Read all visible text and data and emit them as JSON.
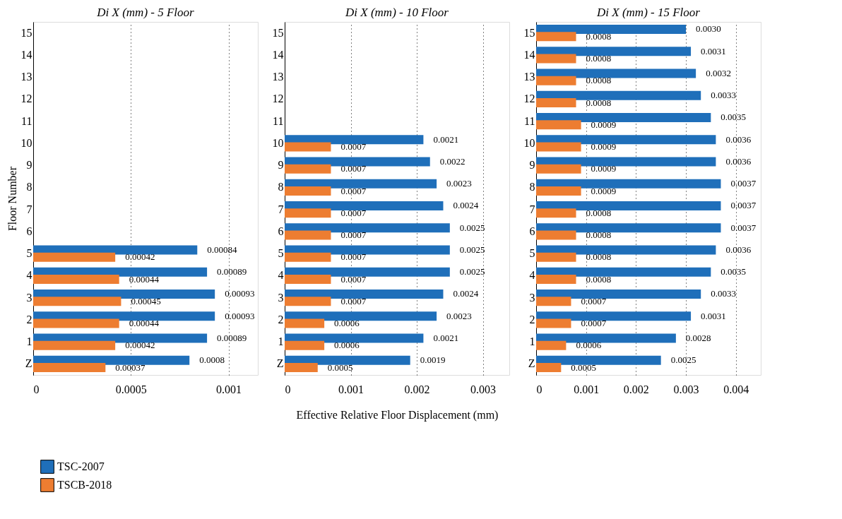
{
  "chart_data": [
    {
      "type": "bar",
      "orientation": "horizontal",
      "title": "Di X (mm) - 5 Floor",
      "ylabel": "Floor Number",
      "legend": "bottom left",
      "grid": "x",
      "categories": [
        "15",
        "14",
        "13",
        "12",
        "11",
        "10",
        "9",
        "8",
        "7",
        "6",
        "5",
        "4",
        "3",
        "2",
        "1",
        "Z"
      ],
      "xlim": [
        0,
        0.00115
      ],
      "xticks": [
        0,
        0.0005,
        0.001
      ],
      "series": [
        {
          "name": "TSC-2007",
          "color": "#1f6fba",
          "values": [
            null,
            null,
            null,
            null,
            null,
            null,
            null,
            null,
            null,
            null,
            0.00084,
            0.00089,
            0.00093,
            0.00093,
            0.00089,
            0.0008
          ],
          "value_labels": [
            null,
            null,
            null,
            null,
            null,
            null,
            null,
            null,
            null,
            null,
            "0.00084",
            "0.00089",
            "0.00093",
            "0.00093",
            "0.00089",
            "0.0008"
          ]
        },
        {
          "name": "TSCB-2018",
          "color": "#ed7d31",
          "values": [
            null,
            null,
            null,
            null,
            null,
            null,
            null,
            null,
            null,
            null,
            0.00042,
            0.00044,
            0.00045,
            0.00044,
            0.00042,
            0.00037
          ],
          "value_labels": [
            null,
            null,
            null,
            null,
            null,
            null,
            null,
            null,
            null,
            null,
            "0.00042",
            "0.00044",
            "0.00045",
            "0.00044",
            "0.00042",
            "0.00037"
          ]
        }
      ]
    },
    {
      "type": "bar",
      "orientation": "horizontal",
      "title": "Di X (mm) - 10 Floor",
      "xlabel": "Effective Relative Floor Displacement (mm)",
      "grid": "x",
      "categories": [
        "15",
        "14",
        "13",
        "12",
        "11",
        "10",
        "9",
        "8",
        "7",
        "6",
        "5",
        "4",
        "3",
        "2",
        "1",
        "Z"
      ],
      "xlim": [
        0,
        0.0034
      ],
      "xticks": [
        0,
        0.001,
        0.002,
        0.003
      ],
      "series": [
        {
          "name": "TSC-2007",
          "color": "#1f6fba",
          "values": [
            null,
            null,
            null,
            null,
            null,
            0.0021,
            0.0022,
            0.0023,
            0.0024,
            0.0025,
            0.0025,
            0.0025,
            0.0024,
            0.0023,
            0.0021,
            0.0019
          ],
          "value_labels": [
            null,
            null,
            null,
            null,
            null,
            "0.0021",
            "0.0022",
            "0.0023",
            "0.0024",
            "0.0025",
            "0.0025",
            "0.0025",
            "0.0024",
            "0.0023",
            "0.0021",
            "0.0019"
          ]
        },
        {
          "name": "TSCB-2018",
          "color": "#ed7d31",
          "values": [
            null,
            null,
            null,
            null,
            null,
            0.0007,
            0.0007,
            0.0007,
            0.0007,
            0.0007,
            0.0007,
            0.0007,
            0.0007,
            0.0006,
            0.0006,
            0.0005
          ],
          "value_labels": [
            null,
            null,
            null,
            null,
            null,
            "0.0007",
            "0.0007",
            "0.0007",
            "0.0007",
            "0.0007",
            "0.0007",
            "0.0007",
            "0.0007",
            "0.0006",
            "0.0006",
            "0.0005"
          ]
        }
      ]
    },
    {
      "type": "bar",
      "orientation": "horizontal",
      "title": "Di X (mm) - 15 Floor",
      "grid": "x",
      "categories": [
        "15",
        "14",
        "13",
        "12",
        "11",
        "10",
        "9",
        "8",
        "7",
        "6",
        "5",
        "4",
        "3",
        "2",
        "1",
        "Z"
      ],
      "xlim": [
        0,
        0.0045
      ],
      "xticks": [
        0,
        0.001,
        0.002,
        0.003,
        0.004
      ],
      "series": [
        {
          "name": "TSC-2007",
          "color": "#1f6fba",
          "values": [
            0.003,
            0.0031,
            0.0032,
            0.0033,
            0.0035,
            0.0036,
            0.0036,
            0.0037,
            0.0037,
            0.0037,
            0.0036,
            0.0035,
            0.0033,
            0.0031,
            0.0028,
            0.0025
          ],
          "value_labels": [
            "0.0030",
            "0.0031",
            "0.0032",
            "0.0033",
            "0.0035",
            "0.0036",
            "0.0036",
            "0.0037",
            "0.0037",
            "0.0037",
            "0.0036",
            "0.0035",
            "0.0033",
            "0.0031",
            "0.0028",
            "0.0025"
          ]
        },
        {
          "name": "TSCB-2018",
          "color": "#ed7d31",
          "values": [
            0.0008,
            0.0008,
            0.0008,
            0.0008,
            0.0009,
            0.0009,
            0.0009,
            0.0009,
            0.0008,
            0.0008,
            0.0008,
            0.0008,
            0.0007,
            0.0007,
            0.0006,
            0.0005
          ],
          "value_labels": [
            "0.0008",
            "0.0008",
            "0.0008",
            "0.0008",
            "0.0009",
            "0.0009",
            "0.0009",
            "0.0009",
            "0.0008",
            "0.0008",
            "0.0008",
            "0.0008",
            "0.0007",
            "0.0007",
            "0.0006",
            "0.0005"
          ]
        }
      ]
    }
  ]
}
